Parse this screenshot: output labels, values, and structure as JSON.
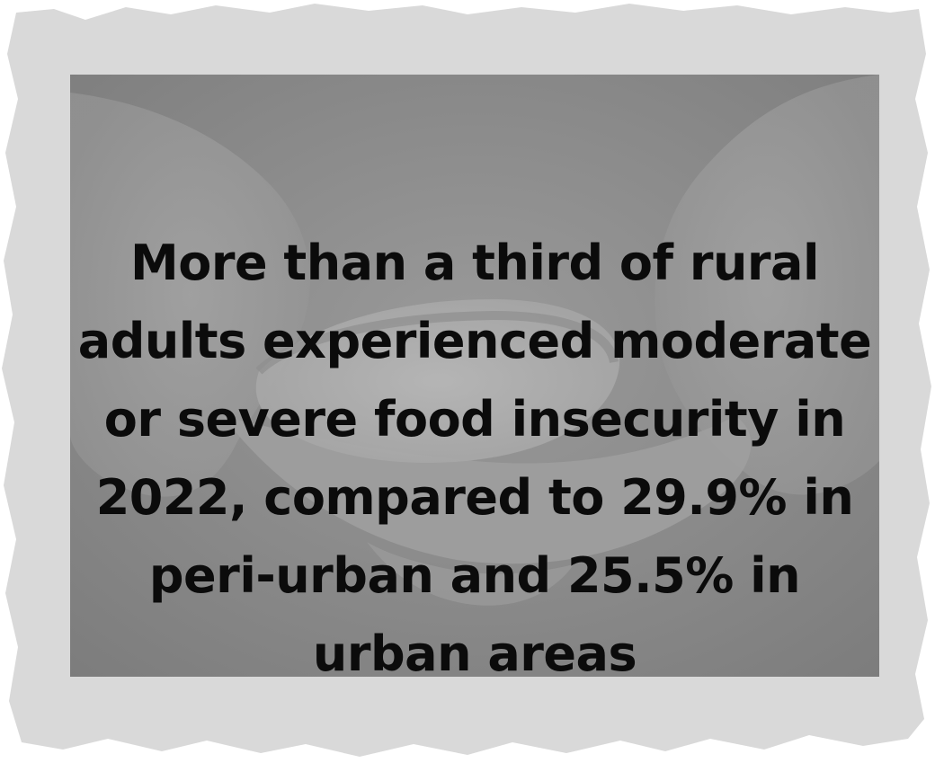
{
  "statement": {
    "lines": [
      "More than a third of rural",
      "adults experienced moderate",
      "or severe food insecurity in",
      "2022, compared to 29.9% in",
      "peri-urban and 25.5% in",
      "urban areas"
    ]
  },
  "colors": {
    "frame": "#d9d9d9",
    "overlay": "#8c8c8c",
    "text": "#0b0b0b"
  },
  "image": {
    "subject": "cupped-hands-holding-bread-photo"
  }
}
